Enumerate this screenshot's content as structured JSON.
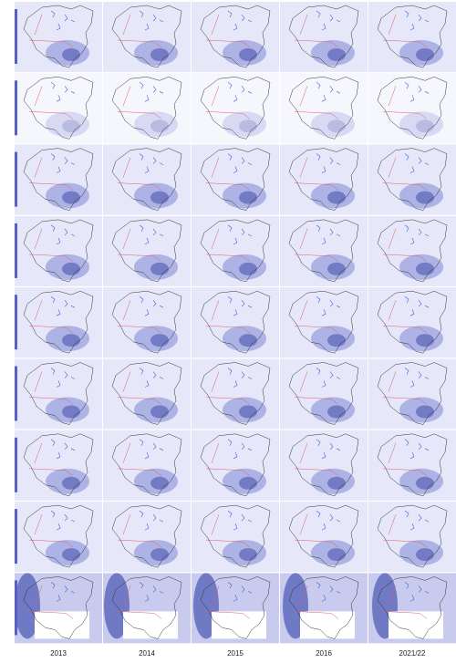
{
  "column_labels": [
    "2013",
    "2014",
    "2015",
    "2016",
    "2021/22"
  ]
}
